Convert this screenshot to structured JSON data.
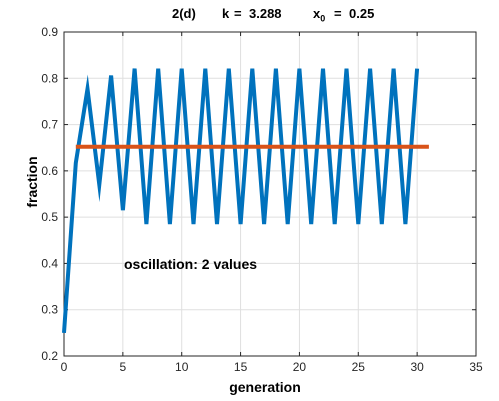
{
  "chart_data": {
    "type": "line",
    "title": {
      "label": "2(d)",
      "k_label": "k",
      "k_value": "3.288",
      "x0_symbol": "x",
      "x0_sub": "0",
      "x0_value": "0.25"
    },
    "xlabel": "generation",
    "ylabel": "fraction",
    "xlim": [
      0,
      35
    ],
    "ylim": [
      0.2,
      0.9
    ],
    "xticks": [
      "0",
      "5",
      "10",
      "15",
      "20",
      "25",
      "30",
      "35"
    ],
    "yticks": [
      "0.2",
      "0.3",
      "0.4",
      "0.5",
      "0.6",
      "0.7",
      "0.8",
      "0.9"
    ],
    "grid": true,
    "annotation": "oscillation: 2 values",
    "colors": {
      "series": "#0072bd",
      "reference": "#d95319"
    },
    "series": [
      {
        "x": [
          0,
          1,
          2,
          3,
          4,
          5,
          6,
          7,
          8,
          9,
          10,
          11,
          12,
          13,
          14,
          15,
          16,
          17,
          18,
          19,
          20,
          21,
          22,
          23,
          24,
          25,
          26,
          27,
          28,
          29,
          30
        ],
        "values": [
          0.25,
          0.617,
          0.777,
          0.57,
          0.806,
          0.515,
          0.821,
          0.485,
          0.821,
          0.485,
          0.821,
          0.485,
          0.821,
          0.485,
          0.821,
          0.485,
          0.821,
          0.485,
          0.821,
          0.485,
          0.821,
          0.485,
          0.821,
          0.485,
          0.821,
          0.485,
          0.821,
          0.485,
          0.821,
          0.485,
          0.821
        ]
      },
      {
        "x": [
          1,
          31
        ],
        "values": [
          0.652,
          0.652
        ]
      }
    ]
  }
}
